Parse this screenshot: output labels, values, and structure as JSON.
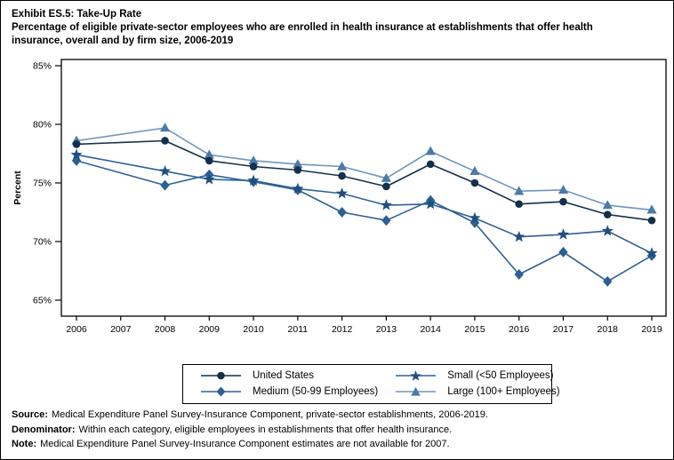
{
  "header": {
    "exhibit_title": "Exhibit ES.5: Take-Up Rate",
    "subtitle": "Percentage of eligible private-sector employees who are enrolled in health insurance at establishments that offer health insurance, overall and by firm size, 2006-2019"
  },
  "chart_data": {
    "type": "line",
    "title": "Exhibit ES.5: Take-Up Rate",
    "xlabel": "",
    "ylabel": "Percent",
    "ylim": [
      63.5,
      85.6
    ],
    "y_ticks": [
      65,
      70,
      75,
      80,
      85
    ],
    "y_tick_labels": [
      "65%",
      "70%",
      "75%",
      "80%",
      "85%"
    ],
    "x_ticks": [
      2006,
      2007,
      2008,
      2009,
      2010,
      2011,
      2012,
      2013,
      2014,
      2015,
      2016,
      2017,
      2018,
      2019
    ],
    "x": [
      2006,
      2008,
      2009,
      2010,
      2011,
      2012,
      2013,
      2014,
      2015,
      2016,
      2017,
      2018,
      2019
    ],
    "note": "Estimates are not available for 2007",
    "legend_position": "bottom-box",
    "grid": false,
    "series": [
      {
        "name": "United States",
        "marker": "circle",
        "color": "#14304a",
        "values": [
          78.3,
          78.6,
          76.9,
          76.4,
          76.1,
          75.6,
          74.7,
          76.6,
          75.0,
          73.2,
          73.4,
          72.3,
          71.8
        ]
      },
      {
        "name": "Small (<50 Employees)",
        "marker": "star",
        "color": "#1f4f7e",
        "line_color": "#2e6195",
        "values": [
          77.4,
          76.0,
          75.3,
          75.2,
          74.5,
          74.1,
          73.1,
          73.2,
          72.0,
          70.4,
          70.6,
          70.9,
          69.0
        ]
      },
      {
        "name": "Medium (50-99 Employees)",
        "marker": "diamond",
        "color": "#2b6094",
        "line_color": "#2e6195",
        "values": [
          76.9,
          74.8,
          75.7,
          75.1,
          74.4,
          72.5,
          71.8,
          73.5,
          71.6,
          67.2,
          69.1,
          66.6,
          68.8
        ]
      },
      {
        "name": "Large (100+ Employees)",
        "marker": "triangle",
        "color": "#4a7ba9",
        "line_color": "#6f95ba",
        "values": [
          78.6,
          79.7,
          77.4,
          76.9,
          76.6,
          76.4,
          75.4,
          77.7,
          76.0,
          74.3,
          74.4,
          73.1,
          72.7
        ]
      }
    ]
  },
  "footer": {
    "lines": [
      {
        "prefix": "Source:",
        "text": "Medical Expenditure Panel Survey-Insurance Component, private-sector establishments, 2006-2019."
      },
      {
        "prefix": "Denominator:",
        "text": "Within each category, eligible employees in establishments that offer health insurance."
      },
      {
        "prefix": "Note:",
        "text": "Medical Expenditure Panel Survey-Insurance Component estimates are not available for 2007."
      }
    ]
  }
}
